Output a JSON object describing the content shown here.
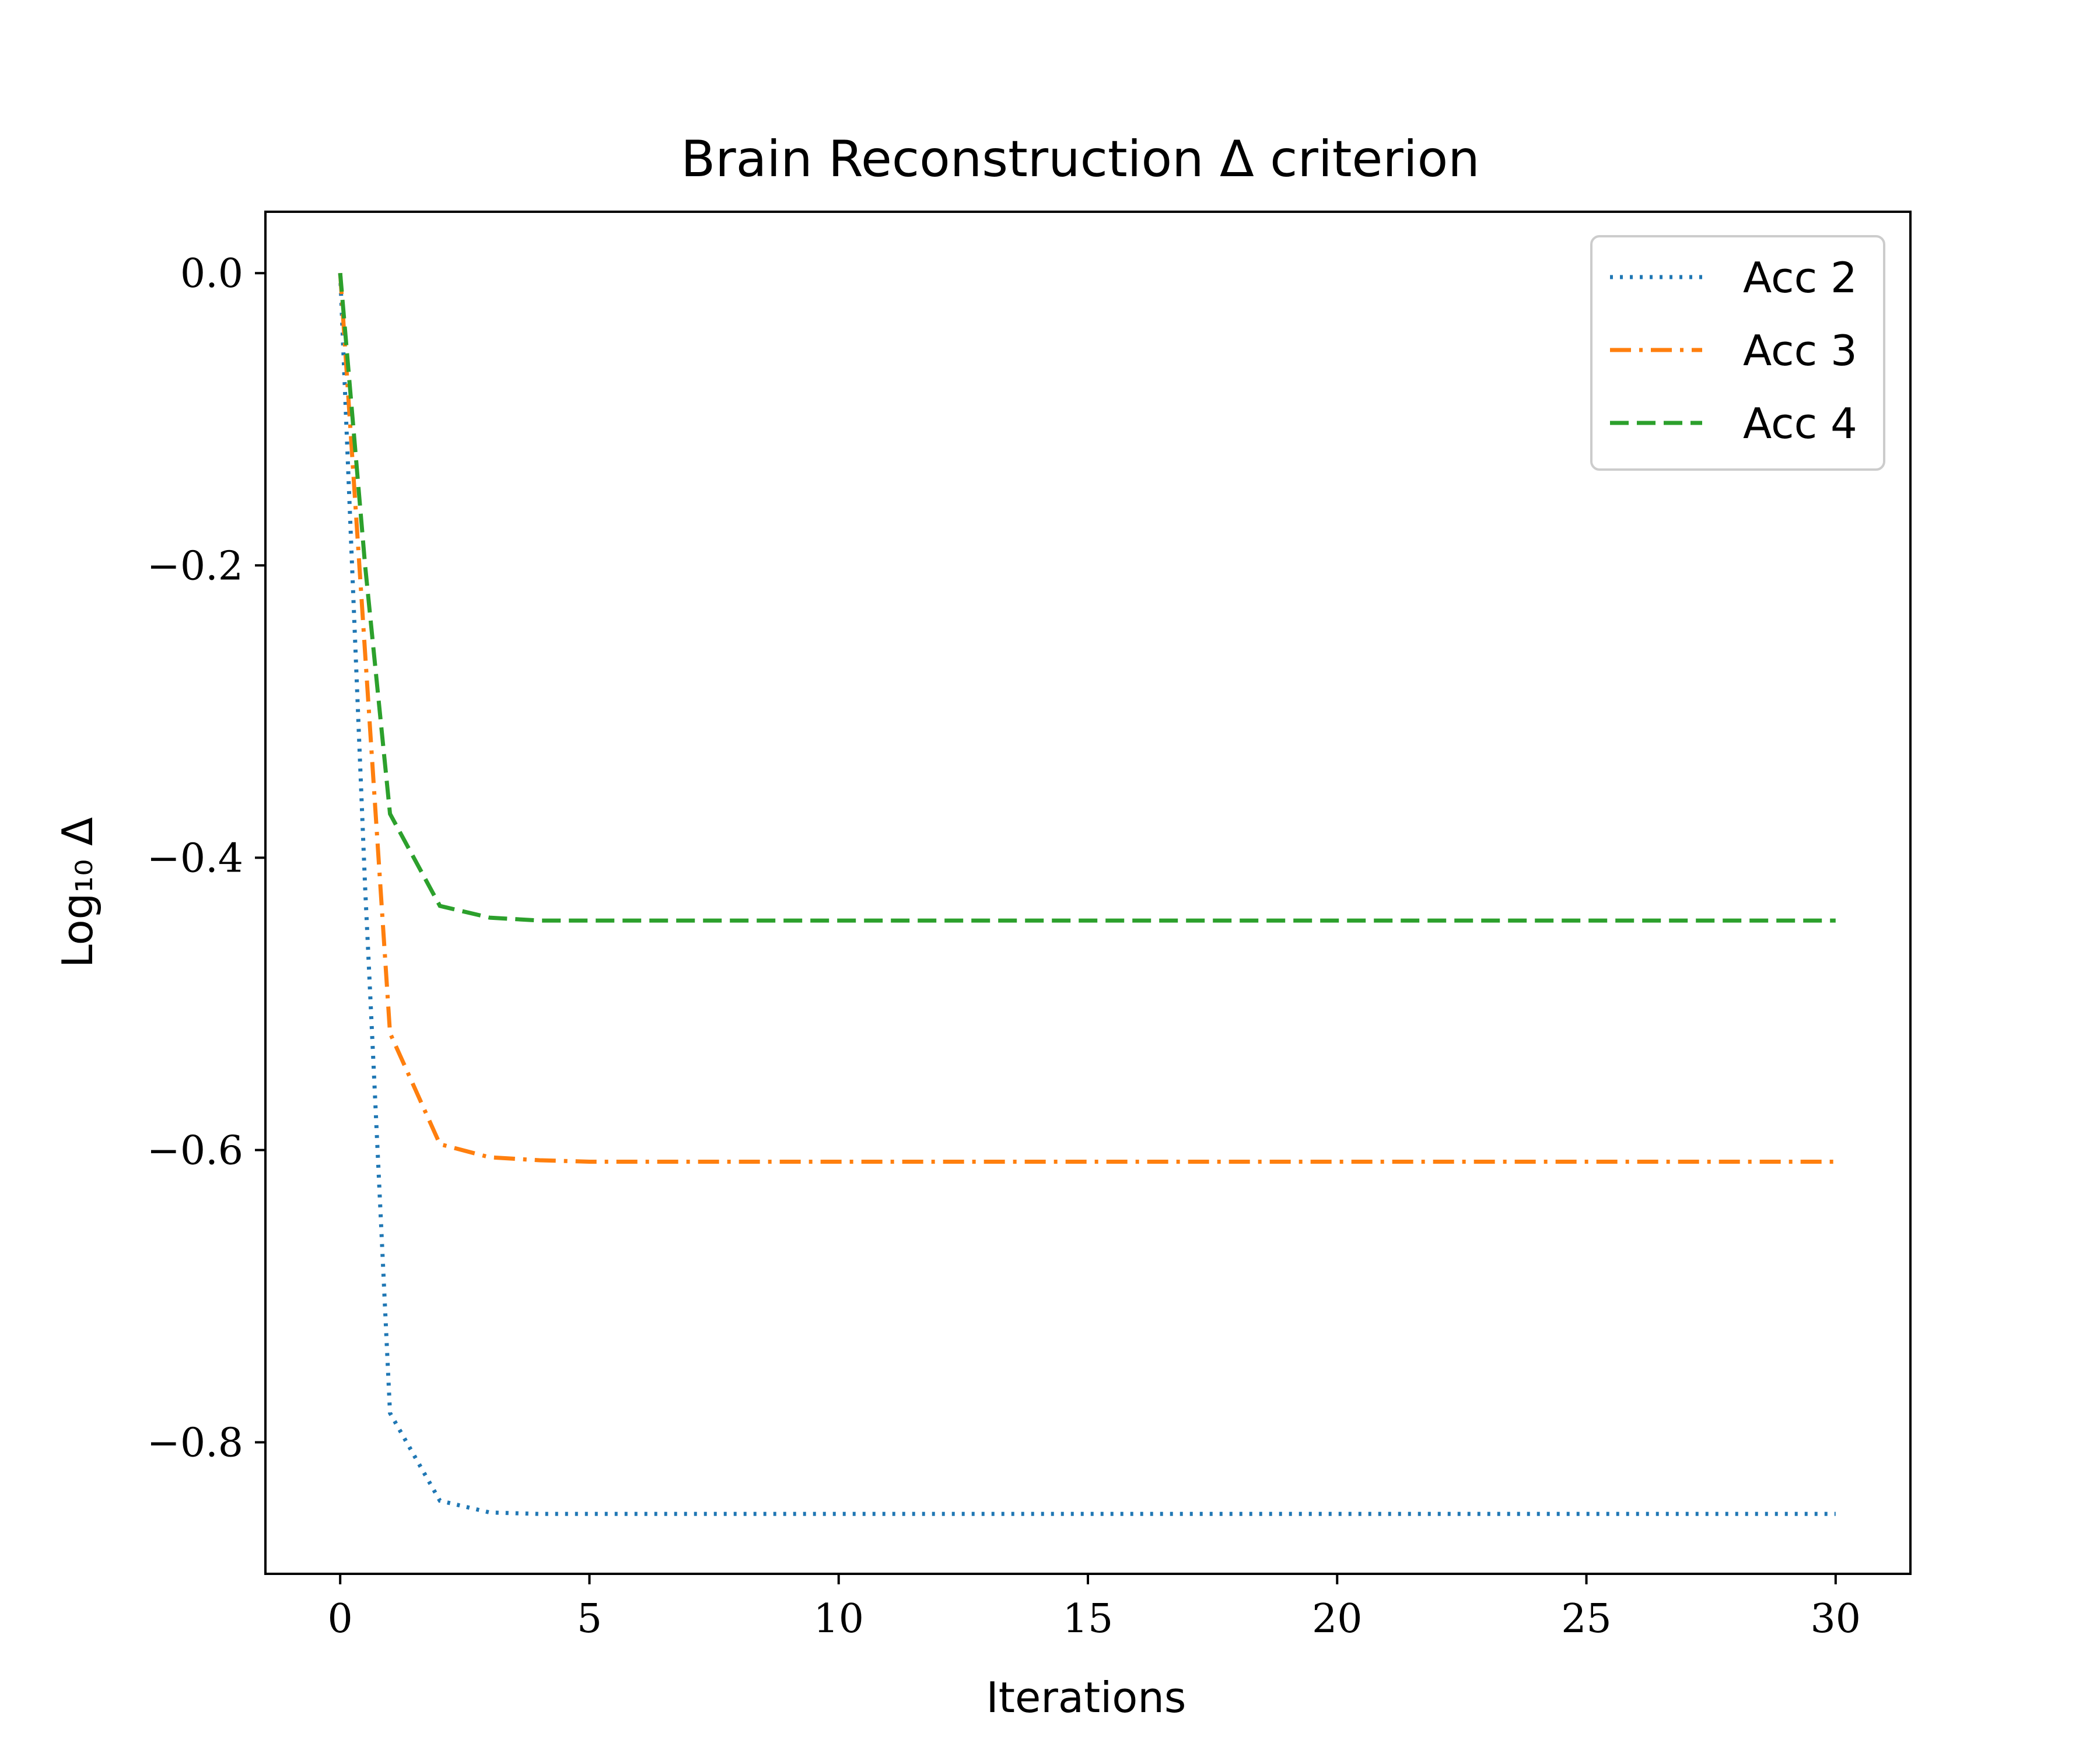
{
  "chart_data": {
    "type": "line",
    "title": "Brain Reconstruction Δ criterion",
    "xlabel": "Iterations",
    "ylabel": "Log₁₀ Δ",
    "xlim": [
      -1.5,
      31.5
    ],
    "ylim": [
      -0.89,
      0.042
    ],
    "xticks": [
      0,
      5,
      10,
      15,
      20,
      25,
      30
    ],
    "xtick_labels": [
      "0",
      "5",
      "10",
      "15",
      "20",
      "25",
      "30"
    ],
    "yticks": [
      0.0,
      -0.2,
      -0.4,
      -0.6,
      -0.8
    ],
    "ytick_labels": [
      "0.0",
      "−0.2",
      "−0.4",
      "−0.6",
      "−0.8"
    ],
    "grid": false,
    "legend_position": "top-right",
    "x": [
      0,
      0.5,
      1,
      2,
      3,
      4,
      5,
      6,
      7,
      8,
      9,
      10,
      11,
      12,
      13,
      14,
      15,
      16,
      17,
      18,
      19,
      20,
      21,
      22,
      23,
      24,
      25,
      26,
      27,
      28,
      29,
      30
    ],
    "series": [
      {
        "name": "Acc 2",
        "color": "#1f77b4",
        "style": "dotted",
        "values": [
          0.0,
          -0.42,
          -0.78,
          -0.84,
          -0.848,
          -0.849,
          -0.849,
          -0.849,
          -0.849,
          -0.849,
          -0.849,
          -0.849,
          -0.849,
          -0.849,
          -0.849,
          -0.849,
          -0.849,
          -0.849,
          -0.849,
          -0.849,
          -0.849,
          -0.849,
          -0.849,
          -0.849,
          -0.849,
          -0.849,
          -0.849,
          -0.849,
          -0.849,
          -0.849,
          -0.849,
          -0.849
        ]
      },
      {
        "name": "Acc 3",
        "color": "#ff7f0e",
        "style": "dashdot",
        "values": [
          0.0,
          -0.26,
          -0.52,
          -0.596,
          -0.605,
          -0.607,
          -0.608,
          -0.608,
          -0.608,
          -0.608,
          -0.608,
          -0.608,
          -0.608,
          -0.608,
          -0.608,
          -0.608,
          -0.608,
          -0.608,
          -0.608,
          -0.608,
          -0.608,
          -0.608,
          -0.608,
          -0.608,
          -0.608,
          -0.608,
          -0.608,
          -0.608,
          -0.608,
          -0.608,
          -0.608,
          -0.608
        ]
      },
      {
        "name": "Acc 4",
        "color": "#2ca02c",
        "style": "dashed",
        "values": [
          0.0,
          -0.2,
          -0.37,
          -0.433,
          -0.441,
          -0.443,
          -0.443,
          -0.443,
          -0.443,
          -0.443,
          -0.443,
          -0.443,
          -0.443,
          -0.443,
          -0.443,
          -0.443,
          -0.443,
          -0.443,
          -0.443,
          -0.443,
          -0.443,
          -0.443,
          -0.443,
          -0.443,
          -0.443,
          -0.443,
          -0.443,
          -0.443,
          -0.443,
          -0.443,
          -0.443,
          -0.443
        ]
      }
    ]
  }
}
